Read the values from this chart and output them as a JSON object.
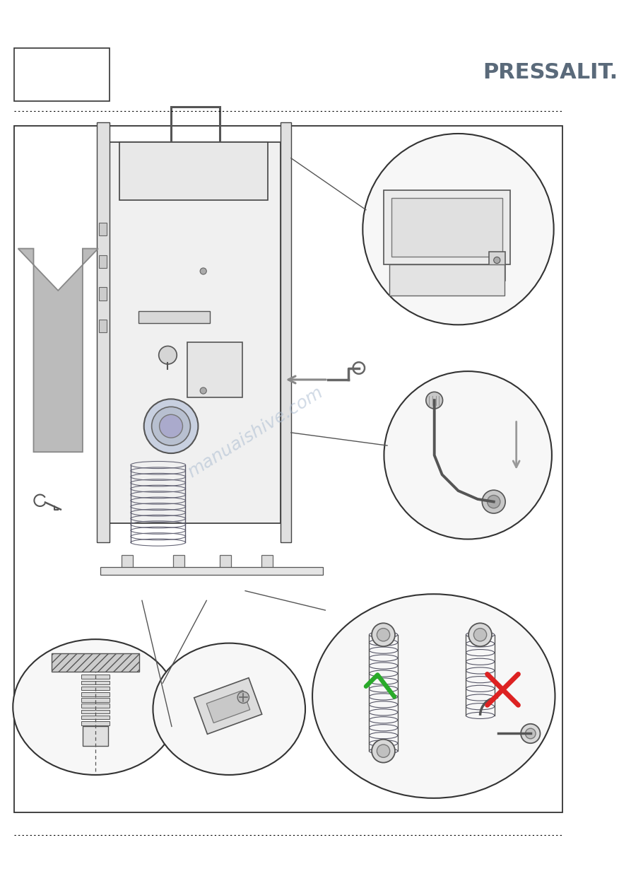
{
  "page_bg": "#ffffff",
  "border_color": "#333333",
  "pressalit_text": "PRESSALIT.",
  "pressalit_color": "#5a6a7a",
  "pressalit_fontsize": 22,
  "watermark_text": "manuaishive.com",
  "watermark_color": "#aabbd0",
  "watermark_alpha": 0.55,
  "arrow_up_color": "#999999",
  "check_color": "#2aaa2a",
  "cross_color": "#dd2222"
}
